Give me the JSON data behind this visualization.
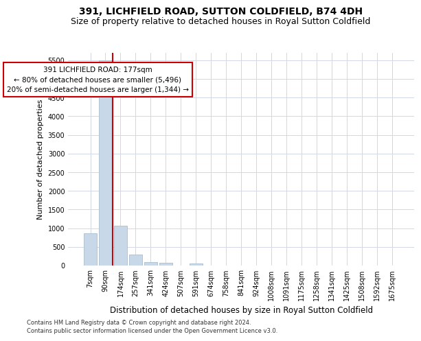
{
  "title1": "391, LICHFIELD ROAD, SUTTON COLDFIELD, B74 4DH",
  "title2": "Size of property relative to detached houses in Royal Sutton Coldfield",
  "xlabel": "Distribution of detached houses by size in Royal Sutton Coldfield",
  "ylabel": "Number of detached properties",
  "categories": [
    "7sqm",
    "90sqm",
    "174sqm",
    "257sqm",
    "341sqm",
    "424sqm",
    "507sqm",
    "591sqm",
    "674sqm",
    "758sqm",
    "841sqm",
    "924sqm",
    "1008sqm",
    "1091sqm",
    "1175sqm",
    "1258sqm",
    "1341sqm",
    "1425sqm",
    "1508sqm",
    "1592sqm",
    "1675sqm"
  ],
  "values": [
    870,
    5490,
    1060,
    290,
    95,
    80,
    0,
    60,
    0,
    0,
    0,
    0,
    0,
    0,
    0,
    0,
    0,
    0,
    0,
    0,
    0
  ],
  "bar_color": "#c8d8e8",
  "bar_edge_color": "#a8bece",
  "vline_x_index": 2,
  "vline_color": "#cc0000",
  "annotation_title": "391 LICHFIELD ROAD: 177sqm",
  "annotation_line1": "← 80% of detached houses are smaller (5,496)",
  "annotation_line2": "20% of semi-detached houses are larger (1,344) →",
  "annotation_box_color": "#ffffff",
  "annotation_box_edge_color": "#cc0000",
  "ylim": [
    0,
    5700
  ],
  "yticks": [
    0,
    500,
    1000,
    1500,
    2000,
    2500,
    3000,
    3500,
    4000,
    4500,
    5000,
    5500
  ],
  "footer1": "Contains HM Land Registry data © Crown copyright and database right 2024.",
  "footer2": "Contains public sector information licensed under the Open Government Licence v3.0.",
  "bg_color": "#ffffff",
  "grid_color": "#d0d8e8",
  "title_fontsize": 10,
  "subtitle_fontsize": 9,
  "tick_fontsize": 7,
  "ylabel_fontsize": 8,
  "xlabel_fontsize": 8.5,
  "annotation_fontsize": 7.5,
  "footer_fontsize": 6
}
